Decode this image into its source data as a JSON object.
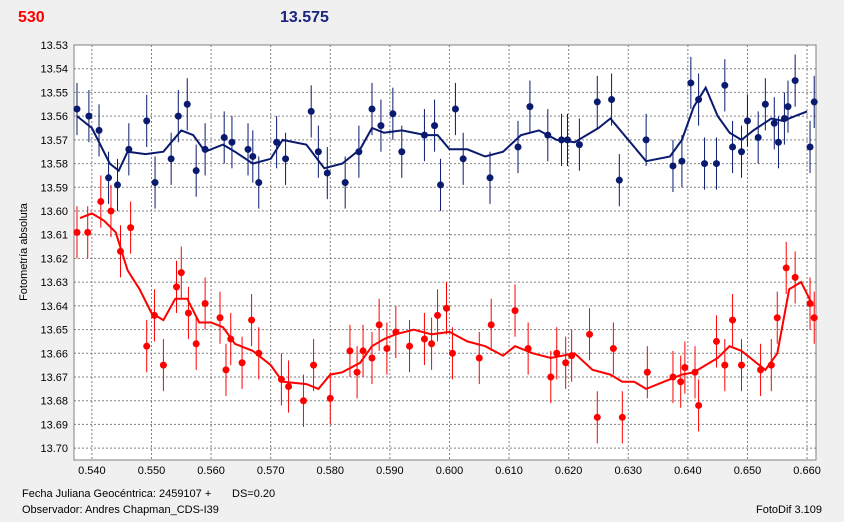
{
  "header": {
    "left": "530",
    "center": "13.575"
  },
  "footer": {
    "line1": "Fecha Juliana Geocéntrica: 2459107 +",
    "ds": "DS=0.20",
    "line2": "Observador: Andres Chapman_CDS-I39",
    "software": "FotoDif 3.109"
  },
  "chart_data": {
    "type": "scatter",
    "title": "",
    "xlabel": "",
    "ylabel": "Fotometría absoluta",
    "xlim": [
      0.537,
      0.6615
    ],
    "ylim": [
      13.705,
      13.53
    ],
    "y_inverted": true,
    "grid": true,
    "x_ticks": [
      "0.540",
      "0.550",
      "0.560",
      "0.570",
      "0.580",
      "0.590",
      "0.600",
      "0.610",
      "0.620",
      "0.630",
      "0.640",
      "0.650",
      "0.660"
    ],
    "y_ticks": [
      "13.53",
      "13.54",
      "13.55",
      "13.56",
      "13.57",
      "13.58",
      "13.59",
      "13.60",
      "13.61",
      "13.62",
      "13.63",
      "13.64",
      "13.65",
      "13.66",
      "13.67",
      "13.68",
      "13.69",
      "13.70"
    ],
    "error_bar": 0.011,
    "series": [
      {
        "color": "#0a1a6e",
        "points": [
          [
            0.5375,
            13.557
          ],
          [
            0.5395,
            13.56
          ],
          [
            0.5412,
            13.566
          ],
          [
            0.5428,
            13.586
          ],
          [
            0.5443,
            13.589
          ],
          [
            0.5462,
            13.574
          ],
          [
            0.5492,
            13.562
          ],
          [
            0.5506,
            13.588
          ],
          [
            0.5533,
            13.578
          ],
          [
            0.5545,
            13.56
          ],
          [
            0.556,
            13.555
          ],
          [
            0.5575,
            13.583
          ],
          [
            0.559,
            13.574
          ],
          [
            0.5622,
            13.569
          ],
          [
            0.5635,
            13.571
          ],
          [
            0.5662,
            13.574
          ],
          [
            0.567,
            13.577
          ],
          [
            0.568,
            13.588
          ],
          [
            0.571,
            13.571
          ],
          [
            0.5725,
            13.578
          ],
          [
            0.5768,
            13.558
          ],
          [
            0.578,
            13.575
          ],
          [
            0.5795,
            13.584
          ],
          [
            0.5825,
            13.588
          ],
          [
            0.5848,
            13.575
          ],
          [
            0.587,
            13.557
          ],
          [
            0.5885,
            13.564
          ],
          [
            0.5905,
            13.559
          ],
          [
            0.592,
            13.575
          ],
          [
            0.5958,
            13.568
          ],
          [
            0.5975,
            13.564
          ],
          [
            0.5985,
            13.589
          ],
          [
            0.601,
            13.557
          ],
          [
            0.6023,
            13.578
          ],
          [
            0.6068,
            13.586
          ],
          [
            0.6115,
            13.573
          ],
          [
            0.6135,
            13.556
          ],
          [
            0.6165,
            13.568
          ],
          [
            0.6188,
            13.57
          ],
          [
            0.6198,
            13.57
          ],
          [
            0.6218,
            13.572
          ],
          [
            0.6248,
            13.554
          ],
          [
            0.6272,
            13.553
          ],
          [
            0.6285,
            13.587
          ],
          [
            0.633,
            13.57
          ],
          [
            0.6375,
            13.581
          ],
          [
            0.639,
            13.579
          ],
          [
            0.6405,
            13.546
          ],
          [
            0.6418,
            13.553
          ],
          [
            0.6428,
            13.58
          ],
          [
            0.6448,
            13.58
          ],
          [
            0.6462,
            13.547
          ],
          [
            0.6475,
            13.573
          ],
          [
            0.649,
            13.575
          ],
          [
            0.65,
            13.562
          ],
          [
            0.6518,
            13.569
          ],
          [
            0.653,
            13.555
          ],
          [
            0.6545,
            13.563
          ],
          [
            0.6552,
            13.571
          ],
          [
            0.6562,
            13.561
          ],
          [
            0.6568,
            13.556
          ],
          [
            0.658,
            13.545
          ],
          [
            0.6605,
            13.573
          ],
          [
            0.6612,
            13.554
          ]
        ],
        "trend": [
          [
            0.5375,
            13.56
          ],
          [
            0.54,
            13.565
          ],
          [
            0.543,
            13.58
          ],
          [
            0.5445,
            13.583
          ],
          [
            0.546,
            13.575
          ],
          [
            0.549,
            13.576
          ],
          [
            0.552,
            13.575
          ],
          [
            0.555,
            13.566
          ],
          [
            0.557,
            13.568
          ],
          [
            0.559,
            13.575
          ],
          [
            0.562,
            13.572
          ],
          [
            0.564,
            13.575
          ],
          [
            0.567,
            13.58
          ],
          [
            0.57,
            13.578
          ],
          [
            0.572,
            13.57
          ],
          [
            0.576,
            13.572
          ],
          [
            0.579,
            13.582
          ],
          [
            0.582,
            13.58
          ],
          [
            0.585,
            13.574
          ],
          [
            0.587,
            13.565
          ],
          [
            0.589,
            13.567
          ],
          [
            0.592,
            13.566
          ],
          [
            0.596,
            13.568
          ],
          [
            0.598,
            13.568
          ],
          [
            0.6,
            13.574
          ],
          [
            0.603,
            13.574
          ],
          [
            0.606,
            13.577
          ],
          [
            0.609,
            13.575
          ],
          [
            0.612,
            13.568
          ],
          [
            0.615,
            13.566
          ],
          [
            0.618,
            13.57
          ],
          [
            0.621,
            13.571
          ],
          [
            0.625,
            13.565
          ],
          [
            0.627,
            13.561
          ],
          [
            0.63,
            13.57
          ],
          [
            0.633,
            13.579
          ],
          [
            0.637,
            13.577
          ],
          [
            0.639,
            13.57
          ],
          [
            0.641,
            13.556
          ],
          [
            0.643,
            13.548
          ],
          [
            0.645,
            13.56
          ],
          [
            0.647,
            13.567
          ],
          [
            0.649,
            13.57
          ],
          [
            0.651,
            13.566
          ],
          [
            0.654,
            13.561
          ],
          [
            0.656,
            13.562
          ],
          [
            0.658,
            13.56
          ],
          [
            0.66,
            13.558
          ]
        ]
      },
      {
        "color": "#ff0000",
        "points": [
          [
            0.5375,
            13.609
          ],
          [
            0.5393,
            13.609
          ],
          [
            0.5415,
            13.596
          ],
          [
            0.5432,
            13.6
          ],
          [
            0.5448,
            13.617
          ],
          [
            0.5465,
            13.607
          ],
          [
            0.5492,
            13.657
          ],
          [
            0.5505,
            13.644
          ],
          [
            0.552,
            13.665
          ],
          [
            0.5542,
            13.632
          ],
          [
            0.555,
            13.626
          ],
          [
            0.5562,
            13.643
          ],
          [
            0.5575,
            13.656
          ],
          [
            0.559,
            13.639
          ],
          [
            0.5615,
            13.645
          ],
          [
            0.5625,
            13.667
          ],
          [
            0.5633,
            13.654
          ],
          [
            0.5652,
            13.664
          ],
          [
            0.5668,
            13.646
          ],
          [
            0.568,
            13.66
          ],
          [
            0.5718,
            13.671
          ],
          [
            0.573,
            13.674
          ],
          [
            0.5755,
            13.68
          ],
          [
            0.5772,
            13.665
          ],
          [
            0.58,
            13.679
          ],
          [
            0.5833,
            13.659
          ],
          [
            0.5845,
            13.668
          ],
          [
            0.5855,
            13.659
          ],
          [
            0.587,
            13.662
          ],
          [
            0.5882,
            13.648
          ],
          [
            0.5895,
            13.658
          ],
          [
            0.591,
            13.651
          ],
          [
            0.5933,
            13.657
          ],
          [
            0.5958,
            13.654
          ],
          [
            0.597,
            13.656
          ],
          [
            0.598,
            13.644
          ],
          [
            0.5995,
            13.641
          ],
          [
            0.6005,
            13.66
          ],
          [
            0.605,
            13.662
          ],
          [
            0.607,
            13.648
          ],
          [
            0.611,
            13.642
          ],
          [
            0.6132,
            13.658
          ],
          [
            0.617,
            13.67
          ],
          [
            0.618,
            13.66
          ],
          [
            0.6195,
            13.664
          ],
          [
            0.6205,
            13.661
          ],
          [
            0.6235,
            13.652
          ],
          [
            0.6248,
            13.687
          ],
          [
            0.6275,
            13.658
          ],
          [
            0.629,
            13.687
          ],
          [
            0.6332,
            13.668
          ],
          [
            0.6375,
            13.67
          ],
          [
            0.6388,
            13.672
          ],
          [
            0.6395,
            13.666
          ],
          [
            0.6412,
            13.668
          ],
          [
            0.6418,
            13.682
          ],
          [
            0.6448,
            13.655
          ],
          [
            0.6462,
            13.665
          ],
          [
            0.6475,
            13.646
          ],
          [
            0.649,
            13.665
          ],
          [
            0.6522,
            13.667
          ],
          [
            0.654,
            13.665
          ],
          [
            0.655,
            13.645
          ],
          [
            0.6565,
            13.624
          ],
          [
            0.658,
            13.628
          ],
          [
            0.6605,
            13.639
          ],
          [
            0.6612,
            13.645
          ]
        ],
        "trend": [
          [
            0.538,
            13.603
          ],
          [
            0.54,
            13.601
          ],
          [
            0.542,
            13.604
          ],
          [
            0.544,
            13.609
          ],
          [
            0.546,
            13.625
          ],
          [
            0.548,
            13.633
          ],
          [
            0.55,
            13.643
          ],
          [
            0.552,
            13.646
          ],
          [
            0.554,
            13.637
          ],
          [
            0.556,
            13.637
          ],
          [
            0.558,
            13.647
          ],
          [
            0.56,
            13.647
          ],
          [
            0.562,
            13.649
          ],
          [
            0.564,
            13.656
          ],
          [
            0.567,
            13.659
          ],
          [
            0.57,
            13.665
          ],
          [
            0.572,
            13.672
          ],
          [
            0.576,
            13.673
          ],
          [
            0.578,
            13.675
          ],
          [
            0.58,
            13.669
          ],
          [
            0.582,
            13.668
          ],
          [
            0.585,
            13.664
          ],
          [
            0.587,
            13.657
          ],
          [
            0.589,
            13.654
          ],
          [
            0.591,
            13.652
          ],
          [
            0.594,
            13.65
          ],
          [
            0.597,
            13.652
          ],
          [
            0.6,
            13.651
          ],
          [
            0.603,
            13.655
          ],
          [
            0.606,
            13.657
          ],
          [
            0.609,
            13.661
          ],
          [
            0.611,
            13.657
          ],
          [
            0.614,
            13.66
          ],
          [
            0.617,
            13.662
          ],
          [
            0.621,
            13.66
          ],
          [
            0.624,
            13.667
          ],
          [
            0.627,
            13.669
          ],
          [
            0.629,
            13.672
          ],
          [
            0.631,
            13.672
          ],
          [
            0.633,
            13.675
          ],
          [
            0.636,
            13.672
          ],
          [
            0.639,
            13.669
          ],
          [
            0.641,
            13.668
          ],
          [
            0.643,
            13.665
          ],
          [
            0.645,
            13.662
          ],
          [
            0.647,
            13.657
          ],
          [
            0.649,
            13.659
          ],
          [
            0.651,
            13.663
          ],
          [
            0.653,
            13.667
          ],
          [
            0.655,
            13.66
          ],
          [
            0.657,
            13.633
          ],
          [
            0.659,
            13.63
          ],
          [
            0.661,
            13.64
          ]
        ]
      }
    ]
  }
}
